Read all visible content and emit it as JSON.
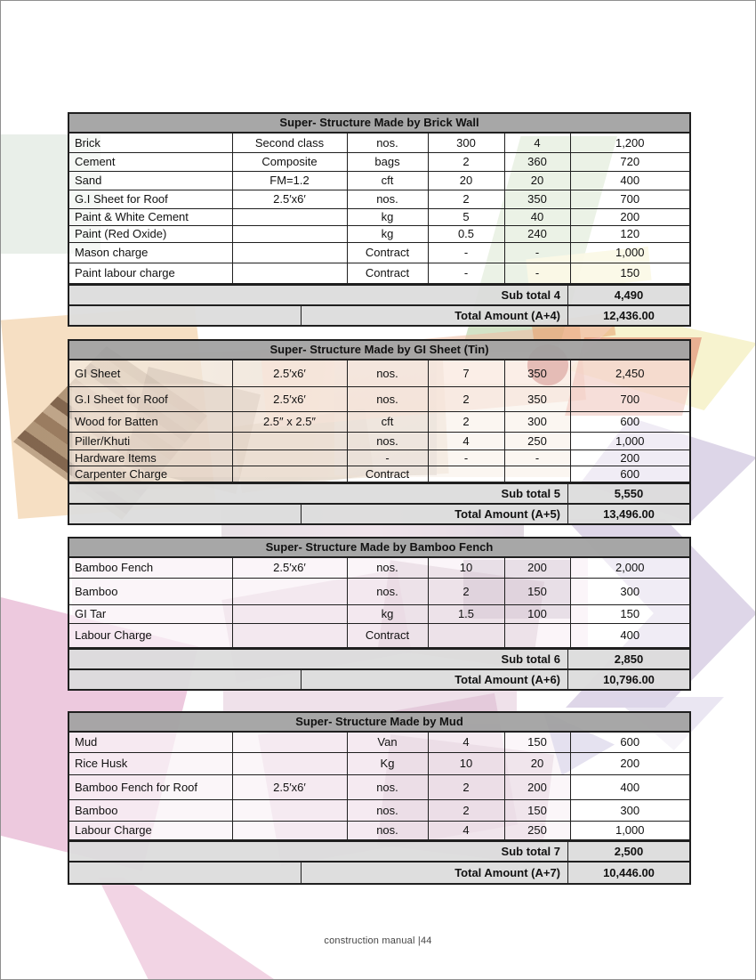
{
  "page": {
    "footer": "construction manual |44"
  },
  "tables": [
    {
      "title": "Super- Structure Made by Brick Wall",
      "rows": [
        [
          "Brick",
          "Second class",
          "nos.",
          "300",
          "4",
          "1,200"
        ],
        [
          "Cement",
          "Composite",
          "bags",
          "2",
          "360",
          "720"
        ],
        [
          "Sand",
          "FM=1.2",
          "cft",
          "20",
          "20",
          "400"
        ],
        [
          "G.I Sheet for Roof",
          "2.5′x6′",
          "nos.",
          "2",
          "350",
          "700"
        ],
        [
          "Paint & White Cement",
          "",
          "kg",
          "5",
          "40",
          "200"
        ],
        [
          "Paint (Red Oxide)",
          "",
          "kg",
          "0.5",
          "240",
          "120"
        ],
        [
          "Mason charge",
          "",
          "Contract",
          "-",
          "-",
          "1,000"
        ],
        [
          "Paint labour charge",
          "",
          "Contract",
          "-",
          "-",
          "150"
        ]
      ],
      "subtotal_label": "Sub total 4",
      "subtotal_value": "4,490",
      "total_label": "Total Amount (A+4)",
      "total_value": "12,436.00"
    },
    {
      "title": "Super- Structure Made by GI Sheet (Tin)",
      "rows": [
        [
          "GI Sheet",
          "2.5′x6′",
          "nos.",
          "7",
          "350",
          "2,450"
        ],
        [
          "G.I Sheet for Roof",
          "2.5′x6′",
          "nos.",
          "2",
          "350",
          "700"
        ],
        [
          "Wood for Batten",
          "2.5″ x 2.5″",
          "cft",
          "2",
          "300",
          "600"
        ],
        [
          "Piller/Khuti",
          "",
          "nos.",
          "4",
          "250",
          "1,000"
        ],
        [
          "Hardware Items",
          "",
          "-",
          "-",
          "-",
          "200"
        ],
        [
          "Carpenter Charge",
          "",
          "Contract",
          "",
          "",
          "600"
        ]
      ],
      "subtotal_label": "Sub total 5",
      "subtotal_value": "5,550",
      "total_label": "Total Amount (A+5)",
      "total_value": "13,496.00"
    },
    {
      "title": "Super- Structure Made by Bamboo Fench",
      "rows": [
        [
          "Bamboo Fench",
          "2.5′x6′",
          "nos.",
          "10",
          "200",
          "2,000"
        ],
        [
          "Bamboo",
          "",
          "nos.",
          "2",
          "150",
          "300"
        ],
        [
          "GI Tar",
          "",
          "kg",
          "1.5",
          "100",
          "150"
        ],
        [
          "Labour Charge",
          "",
          "Contract",
          "",
          "",
          "400"
        ]
      ],
      "subtotal_label": "Sub total 6",
      "subtotal_value": "2,850",
      "total_label": "Total Amount (A+6)",
      "total_value": "10,796.00"
    },
    {
      "title": "Super- Structure Made by Mud",
      "rows": [
        [
          "Mud",
          "",
          "Van",
          "4",
          "150",
          "600"
        ],
        [
          "Rice Husk",
          "",
          "Kg",
          "10",
          "20",
          "200"
        ],
        [
          "Bamboo Fench for Roof",
          "2.5′x6′",
          "nos.",
          "2",
          "200",
          "400"
        ],
        [
          "Bamboo",
          "",
          "nos.",
          "2",
          "150",
          "300"
        ],
        [
          "Labour Charge",
          "",
          "nos.",
          "4",
          "250",
          "1,000"
        ]
      ],
      "subtotal_label": "Sub total 7",
      "subtotal_value": "2,500",
      "total_label": "Total Amount (A+7)",
      "total_value": "10,446.00"
    }
  ]
}
